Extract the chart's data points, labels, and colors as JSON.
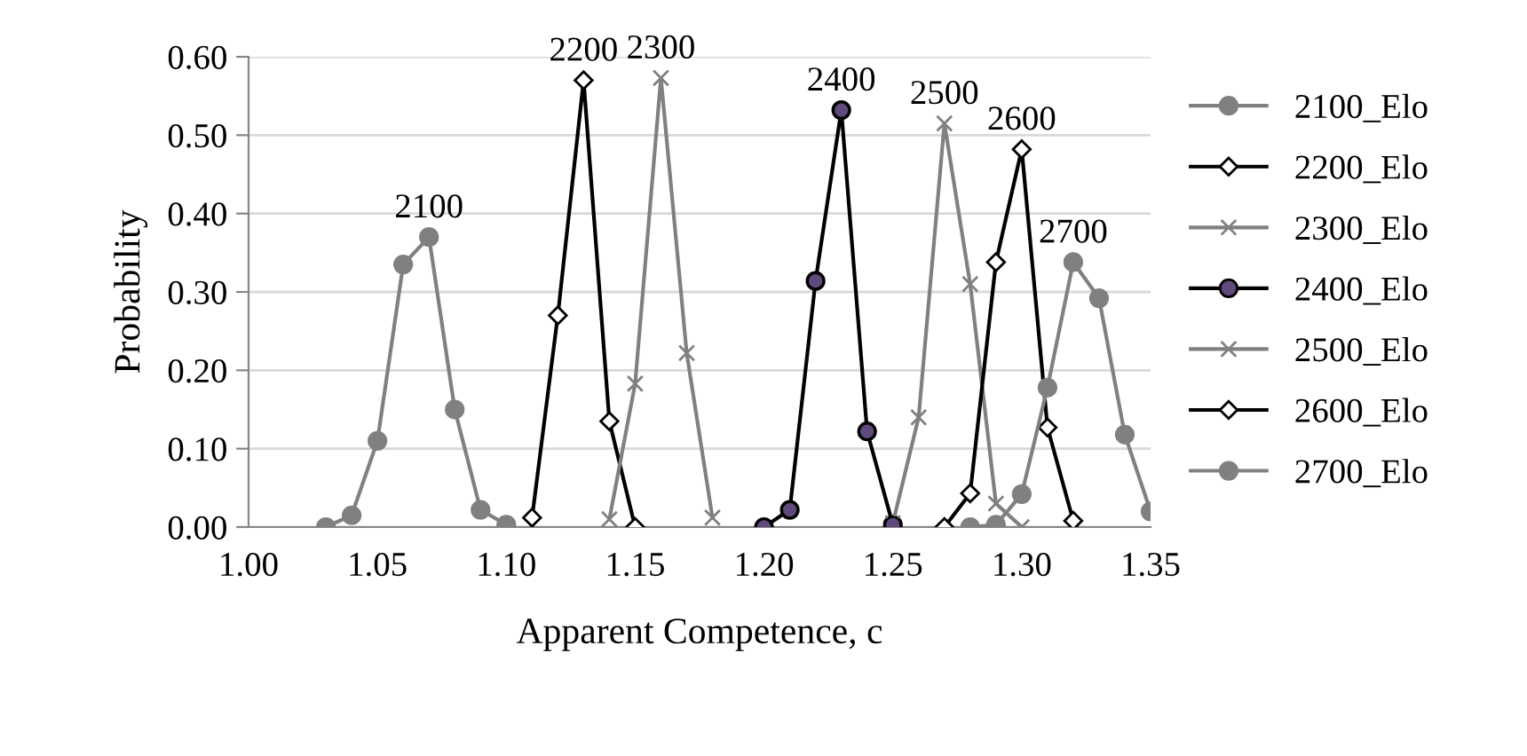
{
  "chart_data": {
    "type": "line",
    "xlabel": "Apparent Competence, c",
    "ylabel": "Probability",
    "xlim": [
      1.0,
      1.35
    ],
    "ylim": [
      0,
      0.6
    ],
    "xticks": [
      {
        "value": 1.0,
        "label": "1.00"
      },
      {
        "value": 1.05,
        "label": "1.05"
      },
      {
        "value": 1.1,
        "label": "1.10"
      },
      {
        "value": 1.15,
        "label": "1.15"
      },
      {
        "value": 1.2,
        "label": "1.20"
      },
      {
        "value": 1.25,
        "label": "1.25"
      },
      {
        "value": 1.3,
        "label": "1.30"
      },
      {
        "value": 1.35,
        "label": "1.35"
      }
    ],
    "yticks": [
      {
        "value": 0,
        "label": "0.00"
      },
      {
        "value": 0.1,
        "label": "0.10"
      },
      {
        "value": 0.2,
        "label": "0.20"
      },
      {
        "value": 0.3,
        "label": "0.30"
      },
      {
        "value": 0.4,
        "label": "0.40"
      },
      {
        "value": 0.5,
        "label": "0.50"
      },
      {
        "value": 0.6,
        "label": "0.60"
      }
    ],
    "grid": "y",
    "legend": "right",
    "series": [
      {
        "name": "2100_Elo",
        "color": "#808080",
        "marker": "circle",
        "x": [
          1.03,
          1.04,
          1.05,
          1.06,
          1.07,
          1.08,
          1.09,
          1.1
        ],
        "values": [
          0.0,
          0.015,
          0.11,
          0.335,
          0.37,
          0.15,
          0.022,
          0.003
        ]
      },
      {
        "name": "2200_Elo",
        "color": "#000000",
        "marker": "diamond",
        "x": [
          1.11,
          1.12,
          1.13,
          1.14,
          1.15
        ],
        "values": [
          0.012,
          0.27,
          0.57,
          0.135,
          0.0
        ]
      },
      {
        "name": "2300_Elo",
        "color": "#808080",
        "marker": "cross",
        "x": [
          1.14,
          1.15,
          1.16,
          1.17,
          1.18
        ],
        "values": [
          0.01,
          0.183,
          0.573,
          0.222,
          0.012
        ]
      },
      {
        "name": "2400_Elo",
        "color": "#000000",
        "colors": [
          "#604a7b",
          "#604a7b",
          "#604a7b",
          "#604a7b",
          "#604a7b",
          "#604a7b"
        ],
        "marker": "circle",
        "x": [
          1.2,
          1.21,
          1.22,
          1.23,
          1.24,
          1.25
        ],
        "values": [
          0.0,
          0.022,
          0.314,
          0.532,
          0.122,
          0.003
        ]
      },
      {
        "name": "2500_Elo",
        "color": "#808080",
        "marker": "cross",
        "x": [
          1.25,
          1.26,
          1.27,
          1.28,
          1.29,
          1.3
        ],
        "values": [
          0.005,
          0.14,
          0.515,
          0.31,
          0.03,
          0.0
        ]
      },
      {
        "name": "2600_Elo",
        "color": "#000000",
        "marker": "diamond",
        "x": [
          1.27,
          1.28,
          1.29,
          1.3,
          1.31,
          1.32
        ],
        "values": [
          0.0,
          0.043,
          0.338,
          0.482,
          0.127,
          0.008
        ]
      },
      {
        "name": "2700_Elo",
        "color": "#808080",
        "marker": "circle",
        "x": [
          1.28,
          1.29,
          1.3,
          1.31,
          1.32,
          1.33,
          1.34,
          1.35
        ],
        "values": [
          0.0,
          0.003,
          0.042,
          0.178,
          0.338,
          0.292,
          0.118,
          0.02
        ]
      }
    ],
    "annotations": [
      {
        "text": "2100",
        "x": 1.07,
        "y": 0.37
      },
      {
        "text": "2200",
        "x": 1.13,
        "y": 0.57
      },
      {
        "text": "2300",
        "x": 1.16,
        "y": 0.573
      },
      {
        "text": "2400",
        "x": 1.23,
        "y": 0.532
      },
      {
        "text": "2500",
        "x": 1.27,
        "y": 0.515
      },
      {
        "text": "2600",
        "x": 1.3,
        "y": 0.482
      },
      {
        "text": "2700",
        "x": 1.32,
        "y": 0.338
      }
    ]
  }
}
